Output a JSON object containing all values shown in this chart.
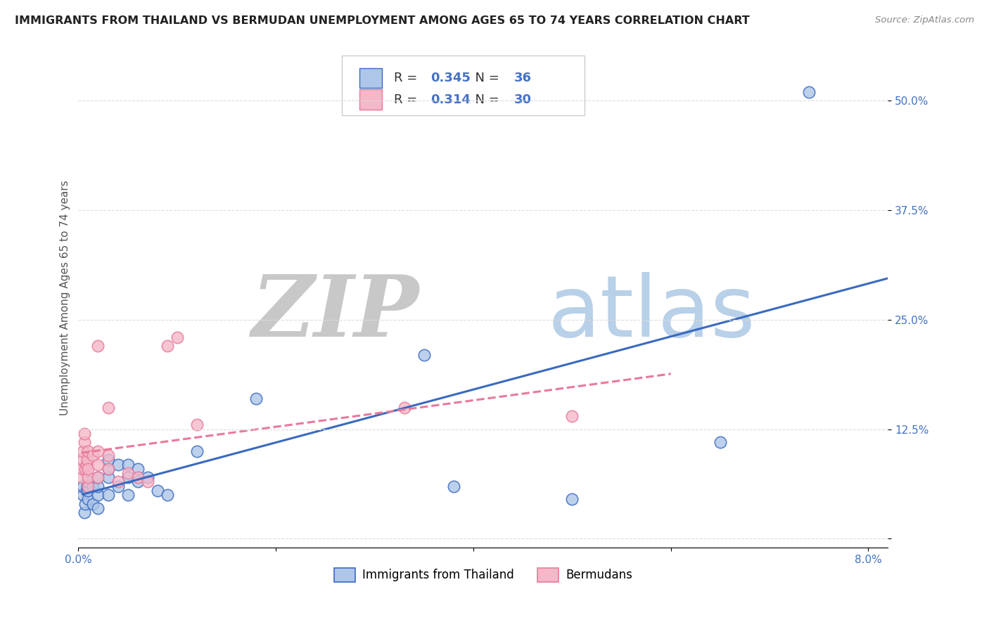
{
  "title": "IMMIGRANTS FROM THAILAND VS BERMUDAN UNEMPLOYMENT AMONG AGES 65 TO 74 YEARS CORRELATION CHART",
  "source": "Source: ZipAtlas.com",
  "ylabel": "Unemployment Among Ages 65 to 74 years",
  "legend_label_blue": "Immigrants from Thailand",
  "legend_label_pink": "Bermudans",
  "R_blue": 0.345,
  "N_blue": 36,
  "R_pink": 0.314,
  "N_pink": 30,
  "color_blue": "#aec6e8",
  "color_pink": "#f4b8c8",
  "line_color_blue": "#3a6abf",
  "line_color_pink": "#e87a9a",
  "xlim": [
    0.0,
    0.082
  ],
  "ylim": [
    -0.01,
    0.56
  ],
  "xticks": [
    0.0,
    0.02,
    0.04,
    0.06,
    0.08
  ],
  "xtick_labels": [
    "0.0%",
    "",
    "",
    "",
    "8.0%"
  ],
  "ytick_right": [
    0.0,
    0.125,
    0.25,
    0.375,
    0.5
  ],
  "ytick_right_labels": [
    "",
    "12.5%",
    "25.0%",
    "37.5%",
    "50.0%"
  ],
  "blue_x": [
    0.0005,
    0.0005,
    0.0006,
    0.0007,
    0.0008,
    0.0009,
    0.001,
    0.001,
    0.001,
    0.0015,
    0.0015,
    0.002,
    0.002,
    0.002,
    0.002,
    0.003,
    0.003,
    0.003,
    0.003,
    0.004,
    0.004,
    0.005,
    0.005,
    0.005,
    0.006,
    0.006,
    0.007,
    0.008,
    0.009,
    0.012,
    0.018,
    0.035,
    0.038,
    0.05,
    0.065,
    0.074
  ],
  "blue_y": [
    0.05,
    0.06,
    0.03,
    0.04,
    0.055,
    0.06,
    0.045,
    0.055,
    0.065,
    0.04,
    0.06,
    0.035,
    0.05,
    0.06,
    0.07,
    0.05,
    0.07,
    0.08,
    0.09,
    0.06,
    0.085,
    0.05,
    0.07,
    0.085,
    0.065,
    0.08,
    0.07,
    0.055,
    0.05,
    0.1,
    0.16,
    0.21,
    0.06,
    0.045,
    0.11,
    0.51
  ],
  "pink_x": [
    0.0003,
    0.0004,
    0.0005,
    0.0005,
    0.0006,
    0.0006,
    0.0007,
    0.0008,
    0.0009,
    0.001,
    0.001,
    0.001,
    0.001,
    0.0015,
    0.002,
    0.002,
    0.002,
    0.002,
    0.003,
    0.003,
    0.003,
    0.004,
    0.005,
    0.006,
    0.007,
    0.009,
    0.01,
    0.012,
    0.033,
    0.05
  ],
  "pink_y": [
    0.07,
    0.08,
    0.09,
    0.1,
    0.11,
    0.12,
    0.08,
    0.085,
    0.09,
    0.06,
    0.07,
    0.08,
    0.1,
    0.095,
    0.07,
    0.085,
    0.1,
    0.22,
    0.08,
    0.095,
    0.15,
    0.065,
    0.075,
    0.07,
    0.065,
    0.22,
    0.23,
    0.13,
    0.15,
    0.14
  ],
  "background_color": "#ffffff",
  "grid_color": "#dddddd",
  "title_fontsize": 11.5,
  "axis_label_fontsize": 11,
  "tick_fontsize": 11,
  "legend_fontsize": 13
}
